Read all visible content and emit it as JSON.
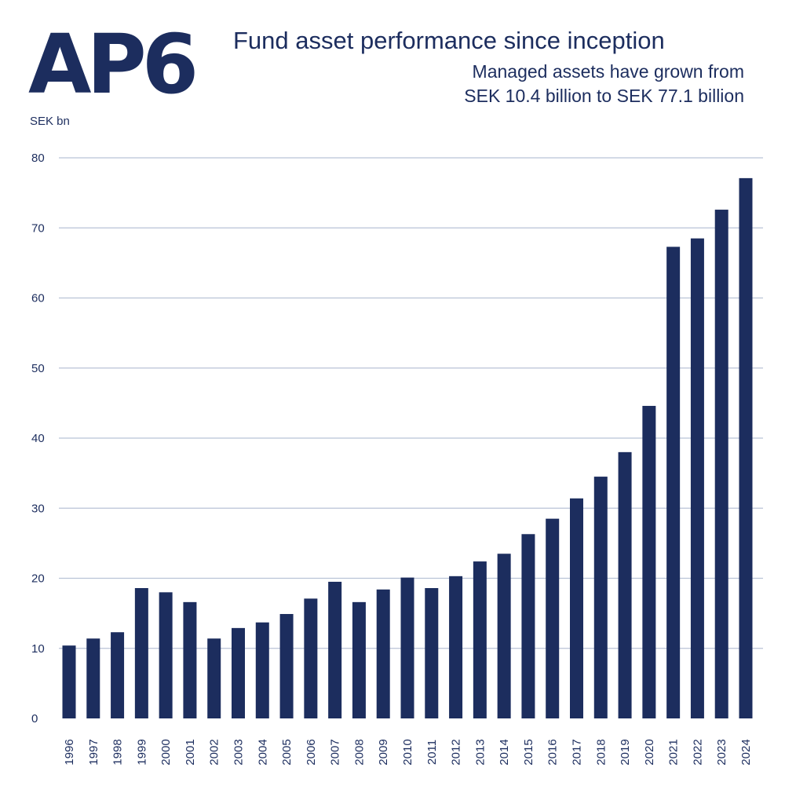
{
  "logo_text": "AP6",
  "colors": {
    "bar": "#1c2d5e",
    "grid": "#b9c3d6",
    "text": "#1c2d5e"
  },
  "chart_data": {
    "type": "bar",
    "title": "Fund asset performance since inception",
    "subtitle_lines": [
      "Managed assets have grown from",
      "SEK 10.4 billion to SEK 77.1 billion"
    ],
    "xlabel": "",
    "ylabel": "SEK bn",
    "ylim": [
      0,
      80
    ],
    "yticks": [
      0,
      10,
      20,
      30,
      40,
      50,
      60,
      70,
      80
    ],
    "grid": true,
    "categories": [
      "1996",
      "1997",
      "1998",
      "1999",
      "2000",
      "2001",
      "2002",
      "2003",
      "2004",
      "2005",
      "2006",
      "2007",
      "2008",
      "2009",
      "2010",
      "2011",
      "2012",
      "2013",
      "2014",
      "2015",
      "2016",
      "2017",
      "2018",
      "2019",
      "2020",
      "2021",
      "2022",
      "2023",
      "2024"
    ],
    "values": [
      10.4,
      11.4,
      12.3,
      18.6,
      18.0,
      16.6,
      11.4,
      12.9,
      13.7,
      14.9,
      17.1,
      19.5,
      16.6,
      18.4,
      20.1,
      18.6,
      20.3,
      22.4,
      23.5,
      26.3,
      28.5,
      31.4,
      34.5,
      38.0,
      44.6,
      67.3,
      68.5,
      72.6,
      77.1
    ]
  }
}
